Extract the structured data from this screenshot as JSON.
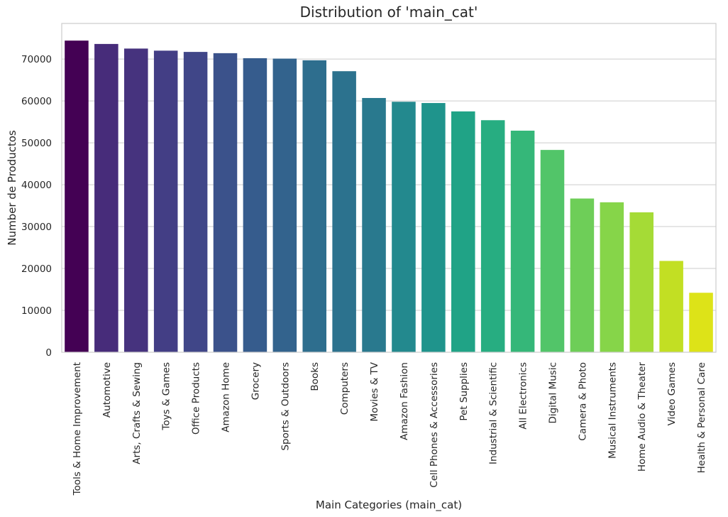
{
  "chart_data": {
    "type": "bar",
    "title": "Distribution of 'main_cat'",
    "xlabel": "Main Categories (main_cat)",
    "ylabel": "Number de Productos",
    "ylim": [
      0,
      78500
    ],
    "yticks": [
      0,
      10000,
      20000,
      30000,
      40000,
      50000,
      60000,
      70000
    ],
    "grid": "horizontal",
    "palette": "viridis",
    "categories": [
      "Tools & Home Improvement",
      "Automotive",
      "Arts, Crafts & Sewing",
      "Toys & Games",
      "Office Products",
      "Amazon Home",
      "Grocery",
      "Sports & Outdoors",
      "Books",
      "Computers",
      "Movies & TV",
      "Amazon Fashion",
      "Cell Phones & Accessories",
      "Pet Supplies",
      "Industrial & Scientific",
      "All Electronics",
      "Digital Music",
      "Camera & Photo",
      "Musical Instruments",
      "Home Audio & Theater",
      "Video Games",
      "Health & Personal Care"
    ],
    "values": [
      74400,
      73600,
      72500,
      72000,
      71700,
      71400,
      70200,
      70100,
      69700,
      67100,
      60700,
      59800,
      59500,
      57500,
      55400,
      52900,
      48300,
      36700,
      35800,
      33400,
      21800,
      14200
    ],
    "colors": [
      "#440154",
      "#472c7a",
      "#46337e",
      "#433e85",
      "#404688",
      "#3b528b",
      "#365c8d",
      "#33638d",
      "#2e6e8e",
      "#2c728e",
      "#29798e",
      "#23898e",
      "#1f948c",
      "#20a386",
      "#27ad81",
      "#35b779",
      "#52c569",
      "#6ece58",
      "#86d549",
      "#a5db36",
      "#c2df23",
      "#dde318"
    ]
  }
}
